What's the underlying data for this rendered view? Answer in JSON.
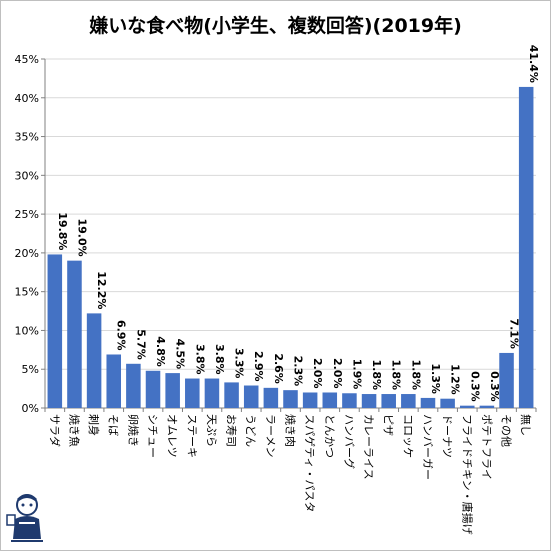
{
  "chart_data": {
    "type": "bar",
    "title": "嫌いな食べ物(小学生、複数回答)(2019年)",
    "categories": [
      "サラダ",
      "焼き魚",
      "刺身",
      "そば",
      "卵焼き",
      "シチュー",
      "オムレツ",
      "ステーキ",
      "天ぷら",
      "お寿司",
      "うどん",
      "ラーメン",
      "焼き肉",
      "スパゲティ・パスタ",
      "とんかつ",
      "ハンバーグ",
      "カレーライス",
      "ピザ",
      "コロッケ",
      "ハンバーガー",
      "ドーナツ",
      "フライドチキン・唐揚げ",
      "ポテトフライ",
      "その他",
      "無し"
    ],
    "values": [
      19.8,
      19.0,
      12.2,
      6.9,
      5.7,
      4.8,
      4.5,
      3.8,
      3.8,
      3.3,
      2.9,
      2.6,
      2.3,
      2.0,
      2.0,
      1.9,
      1.8,
      1.8,
      1.8,
      1.3,
      1.2,
      0.3,
      0.3,
      7.1,
      41.4
    ],
    "value_labels": [
      "19.8%",
      "19.0%",
      "12.2%",
      "6.9%",
      "5.7%",
      "4.8%",
      "4.5%",
      "3.8%",
      "3.8%",
      "3.3%",
      "2.9%",
      "2.6%",
      "2.3%",
      "2.0%",
      "2.0%",
      "1.9%",
      "1.8%",
      "1.8%",
      "1.8%",
      "1.3%",
      "1.2%",
      "0.3%",
      "0.3%",
      "7.1%",
      "41.4%"
    ],
    "yticks": [
      "0%",
      "5%",
      "10%",
      "15%",
      "20%",
      "25%",
      "30%",
      "35%",
      "40%",
      "45%"
    ],
    "ylim": [
      0,
      45
    ],
    "grid": true,
    "bar_color": "#4472c4"
  }
}
